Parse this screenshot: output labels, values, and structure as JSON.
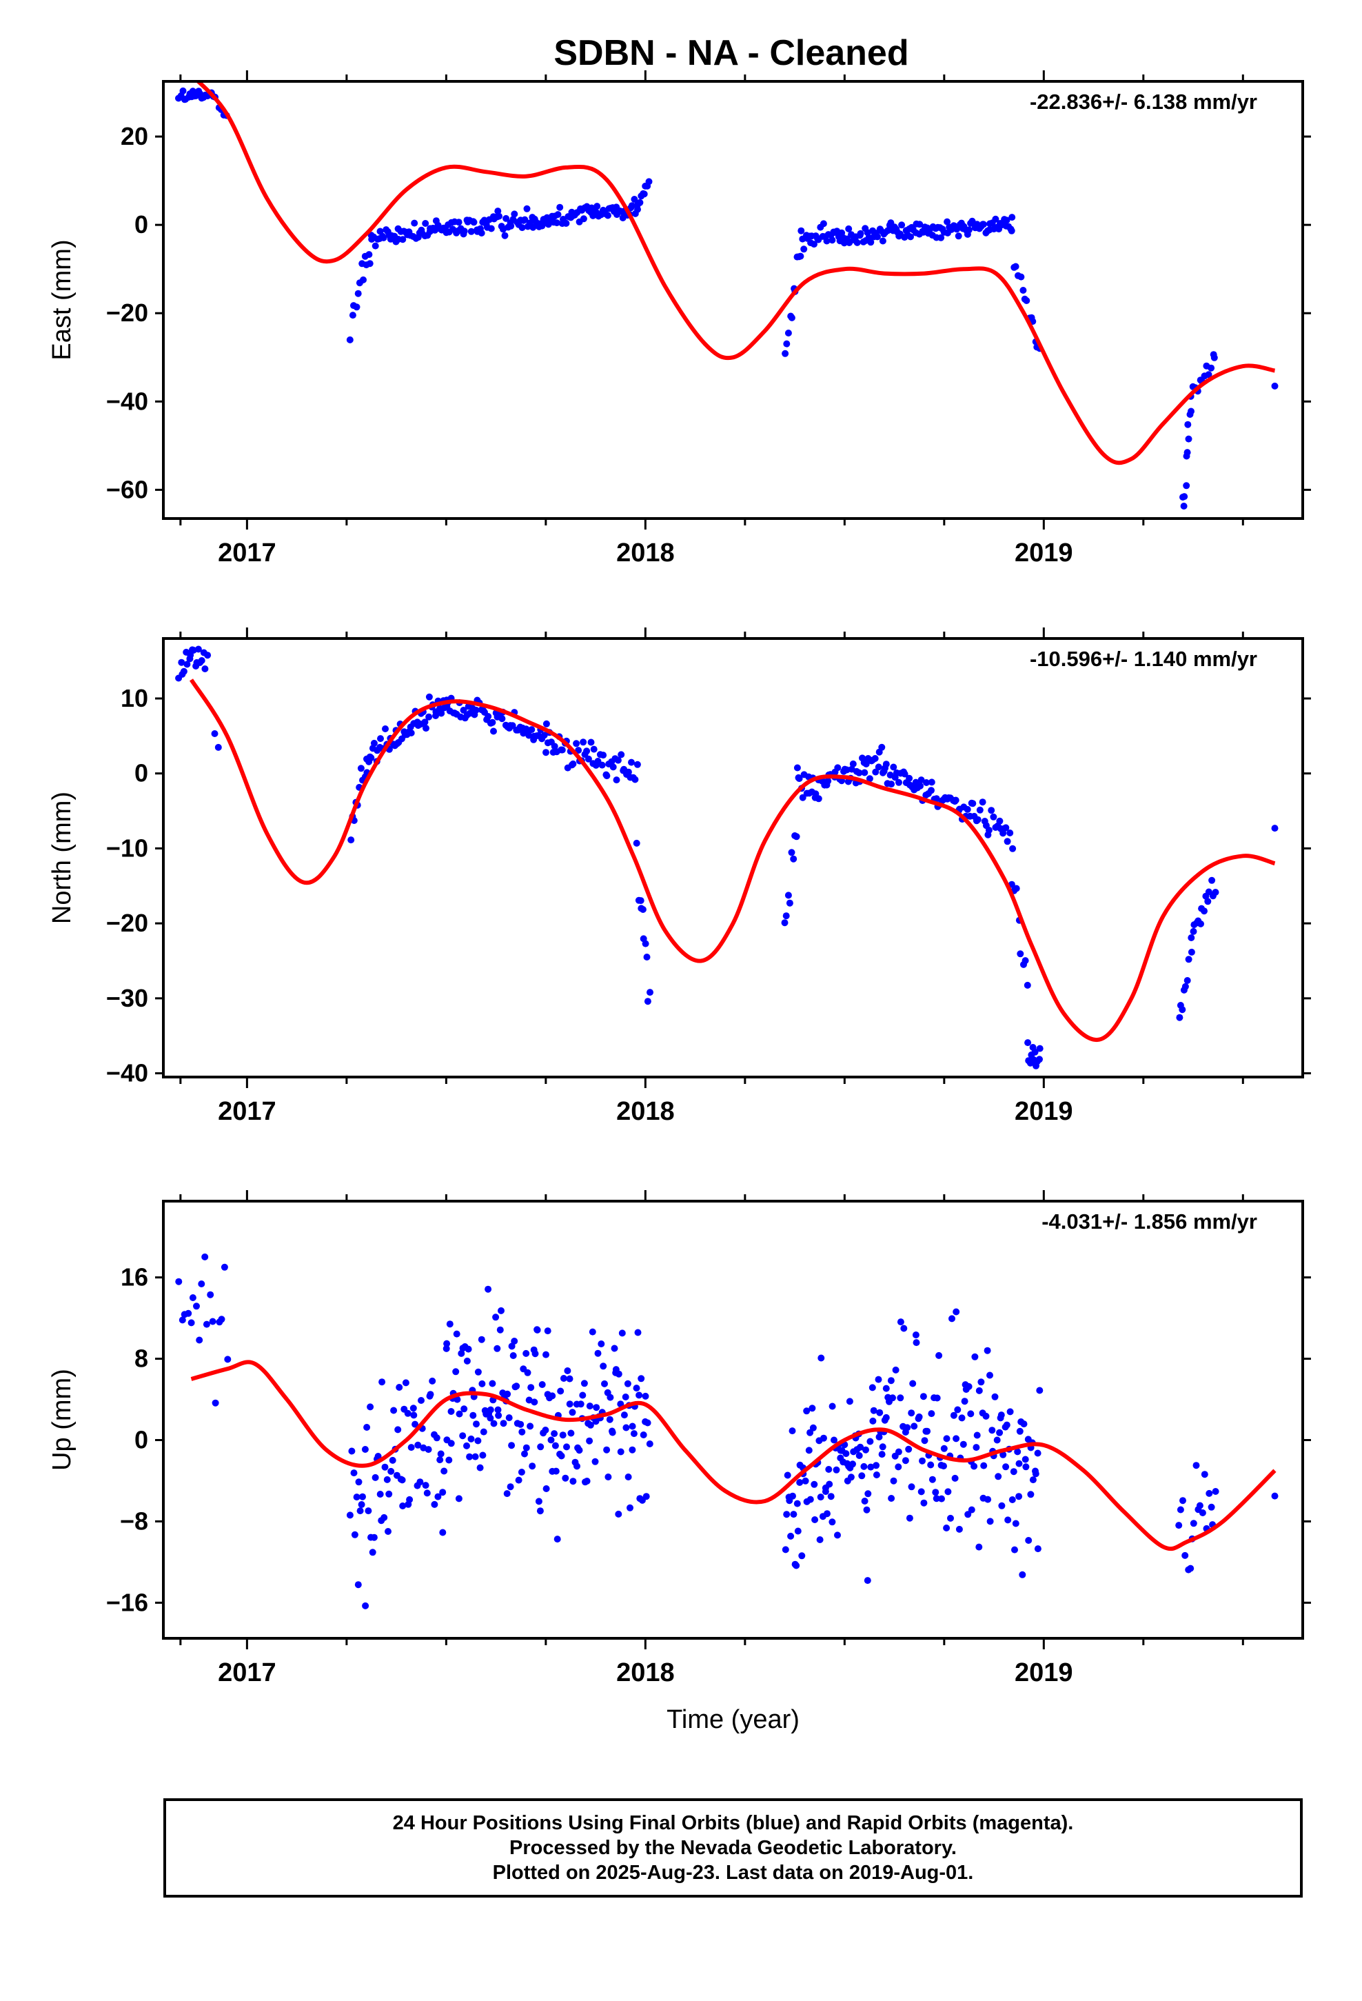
{
  "title": "SDBN  - NA - Cleaned",
  "colors": {
    "data_points": "#0000ff",
    "model_fit": "#ff0000",
    "axis": "#000000"
  },
  "footer": {
    "line1": "24 Hour Positions Using Final Orbits (blue) and Rapid Orbits (magenta).",
    "line2": "Processed by the Nevada Geodetic Laboratory.",
    "line3": "Plotted on 2025-Aug-23. Last data on 2019-Aug-01."
  },
  "chart_data": [
    {
      "type": "scatter",
      "id": "east",
      "ylabel": "East (mm)",
      "rate_label": "-22.836+/- 6.138 mm/yr",
      "xlim": [
        2016.79,
        2019.65
      ],
      "ylim": [
        -66.5,
        32.5
      ],
      "yticks": [
        -60,
        -40,
        -20,
        0,
        20
      ],
      "xticks": [
        2017,
        2018,
        2019
      ],
      "segments": [
        {
          "t0": 2016.83,
          "t1": 2016.92,
          "v0": 29,
          "v1": 29,
          "sd": 0.8,
          "n": 22
        },
        {
          "t0": 2016.93,
          "t1": 2016.95,
          "v0": 27,
          "v1": 25,
          "sd": 0.6,
          "n": 4
        },
        {
          "t0": 2017.26,
          "t1": 2017.31,
          "v0": -22,
          "v1": -5,
          "sd": 2.0,
          "n": 12
        },
        {
          "t0": 2017.31,
          "t1": 2017.98,
          "v0": -3,
          "v1": 4,
          "sd": 1.1,
          "n": 160
        },
        {
          "t0": 2017.98,
          "t1": 2018.01,
          "v0": 5,
          "v1": 9,
          "sd": 0.8,
          "n": 8
        },
        {
          "t0": 2018.35,
          "t1": 2018.39,
          "v0": -29,
          "v1": -6,
          "sd": 2.0,
          "n": 10
        },
        {
          "t0": 2018.39,
          "t1": 2018.92,
          "v0": -3,
          "v1": 0,
          "sd": 1.1,
          "n": 130
        },
        {
          "t0": 2018.92,
          "t1": 2018.99,
          "v0": -5,
          "v1": -28,
          "sd": 1.5,
          "n": 14
        },
        {
          "t0": 2019.35,
          "t1": 2019.37,
          "v0": -64,
          "v1": -42,
          "sd": 2.0,
          "n": 10
        },
        {
          "t0": 2019.37,
          "t1": 2019.43,
          "v0": -38,
          "v1": -30,
          "sd": 1.2,
          "n": 12
        },
        {
          "t0": 2019.58,
          "t1": 2019.58,
          "v0": -36.5,
          "v1": -36.5,
          "sd": 0.0,
          "n": 1
        }
      ],
      "model": {
        "x": [
          2016.86,
          2016.95,
          2017.05,
          2017.15,
          2017.22,
          2017.3,
          2017.4,
          2017.5,
          2017.6,
          2017.7,
          2017.8,
          2017.88,
          2017.95,
          2018.05,
          2018.15,
          2018.22,
          2018.3,
          2018.4,
          2018.5,
          2018.6,
          2018.7,
          2018.8,
          2018.88,
          2018.95,
          2019.05,
          2019.15,
          2019.22,
          2019.3,
          2019.4,
          2019.5,
          2019.58
        ],
        "y": [
          34,
          25,
          6,
          -6,
          -8,
          -2,
          8,
          13,
          12,
          11,
          13,
          12,
          4,
          -14,
          -27,
          -30,
          -24,
          -13,
          -10,
          -11,
          -11,
          -10,
          -11,
          -20,
          -38,
          -52,
          -53,
          -45,
          -36,
          -32,
          -33
        ]
      }
    },
    {
      "type": "scatter",
      "id": "north",
      "ylabel": "North (mm)",
      "rate_label": "-10.596+/- 1.140 mm/yr",
      "xlim": [
        2016.79,
        2019.65
      ],
      "ylim": [
        -40.5,
        18.0
      ],
      "yticks": [
        -40,
        -30,
        -20,
        -10,
        0,
        10
      ],
      "xticks": [
        2017,
        2018,
        2019
      ],
      "segments": [
        {
          "t0": 2016.83,
          "t1": 2016.9,
          "v0": 15,
          "v1": 15,
          "sd": 1.0,
          "n": 18
        },
        {
          "t0": 2016.92,
          "t1": 2016.93,
          "v0": 5.5,
          "v1": 3.5,
          "sd": 0.4,
          "n": 2
        },
        {
          "t0": 2017.26,
          "t1": 2017.3,
          "v0": -8,
          "v1": 1,
          "sd": 1.5,
          "n": 10
        },
        {
          "t0": 2017.3,
          "t1": 2017.5,
          "v0": 2,
          "v1": 9.5,
          "sd": 1.0,
          "n": 50
        },
        {
          "t0": 2017.5,
          "t1": 2017.75,
          "v0": 9.5,
          "v1": 5,
          "sd": 1.0,
          "n": 55
        },
        {
          "t0": 2017.75,
          "t1": 2017.98,
          "v0": 4,
          "v1": 0,
          "sd": 1.0,
          "n": 50
        },
        {
          "t0": 2017.98,
          "t1": 2018.01,
          "v0": -13,
          "v1": -30,
          "sd": 2.0,
          "n": 10
        },
        {
          "t0": 2018.35,
          "t1": 2018.38,
          "v0": -21,
          "v1": -7,
          "sd": 2.0,
          "n": 8
        },
        {
          "t0": 2018.38,
          "t1": 2018.6,
          "v0": -2,
          "v1": 1.5,
          "sd": 1.1,
          "n": 55
        },
        {
          "t0": 2018.6,
          "t1": 2018.92,
          "v0": 0,
          "v1": -7.5,
          "sd": 1.0,
          "n": 70
        },
        {
          "t0": 2018.92,
          "t1": 2018.96,
          "v0": -14,
          "v1": -30,
          "sd": 2.0,
          "n": 8
        },
        {
          "t0": 2018.96,
          "t1": 2018.99,
          "v0": -37,
          "v1": -38,
          "sd": 1.2,
          "n": 12
        },
        {
          "t0": 2019.34,
          "t1": 2019.37,
          "v0": -33,
          "v1": -25,
          "sd": 2.0,
          "n": 8
        },
        {
          "t0": 2019.37,
          "t1": 2019.43,
          "v0": -22,
          "v1": -15,
          "sd": 1.2,
          "n": 14
        },
        {
          "t0": 2019.58,
          "t1": 2019.58,
          "v0": -7.3,
          "v1": -7.3,
          "sd": 0.0,
          "n": 1
        }
      ],
      "model": {
        "x": [
          2016.86,
          2016.95,
          2017.05,
          2017.14,
          2017.22,
          2017.3,
          2017.4,
          2017.5,
          2017.6,
          2017.7,
          2017.8,
          2017.9,
          2017.97,
          2018.05,
          2018.14,
          2018.22,
          2018.3,
          2018.4,
          2018.5,
          2018.6,
          2018.7,
          2018.8,
          2018.9,
          2018.97,
          2019.05,
          2019.14,
          2019.22,
          2019.3,
          2019.4,
          2019.5,
          2019.58
        ],
        "y": [
          12.5,
          5,
          -8,
          -14.5,
          -11,
          -1,
          7,
          9.5,
          9,
          7,
          4,
          -3,
          -11,
          -21,
          -25,
          -20,
          -9,
          -1.5,
          -0.5,
          -2,
          -3.5,
          -6,
          -14,
          -23,
          -32,
          -35.5,
          -30,
          -19,
          -13,
          -11,
          -12
        ]
      }
    },
    {
      "type": "scatter",
      "id": "up",
      "ylabel": "Up (mm)",
      "xlabel": "Time (year)",
      "rate_label": "-4.031+/- 1.856 mm/yr",
      "xlim": [
        2016.79,
        2019.65
      ],
      "ylim": [
        -19.5,
        23.5
      ],
      "yticks": [
        -16,
        -8,
        0,
        8,
        16
      ],
      "xticks": [
        2017,
        2018,
        2019
      ],
      "segments": [
        {
          "t0": 2016.83,
          "t1": 2016.95,
          "v0": 13,
          "v1": 10,
          "sd": 4.0,
          "n": 18
        },
        {
          "t0": 2017.26,
          "t1": 2017.5,
          "v0": -5,
          "v1": 0,
          "sd": 4.5,
          "n": 70
        },
        {
          "t0": 2017.5,
          "t1": 2017.75,
          "v0": 5,
          "v1": 3,
          "sd": 4.5,
          "n": 90
        },
        {
          "t0": 2017.75,
          "t1": 2018.01,
          "v0": 2,
          "v1": 3,
          "sd": 4.5,
          "n": 90
        },
        {
          "t0": 2018.35,
          "t1": 2018.6,
          "v0": -6,
          "v1": 0,
          "sd": 4.0,
          "n": 90
        },
        {
          "t0": 2018.6,
          "t1": 2018.99,
          "v0": 1,
          "v1": -2,
          "sd": 4.8,
          "n": 130
        },
        {
          "t0": 2019.34,
          "t1": 2019.43,
          "v0": -9,
          "v1": -7,
          "sd": 2.6,
          "n": 18
        },
        {
          "t0": 2019.58,
          "t1": 2019.58,
          "v0": -5.5,
          "v1": -5.5,
          "sd": 0.0,
          "n": 1
        }
      ],
      "model": {
        "x": [
          2016.86,
          2016.95,
          2017.02,
          2017.1,
          2017.2,
          2017.3,
          2017.4,
          2017.5,
          2017.6,
          2017.7,
          2017.8,
          2017.9,
          2018.0,
          2018.1,
          2018.2,
          2018.3,
          2018.4,
          2018.5,
          2018.6,
          2018.7,
          2018.8,
          2018.9,
          2019.0,
          2019.1,
          2019.2,
          2019.3,
          2019.36,
          2019.45,
          2019.58
        ],
        "y": [
          6,
          7,
          7.5,
          4,
          -1,
          -2.5,
          0,
          4,
          4.5,
          3,
          2,
          2.5,
          3.5,
          -1,
          -5,
          -6,
          -3,
          0,
          1,
          -1,
          -2,
          -1,
          -0.5,
          -3,
          -7,
          -10.5,
          -10,
          -8,
          -3
        ]
      }
    }
  ]
}
